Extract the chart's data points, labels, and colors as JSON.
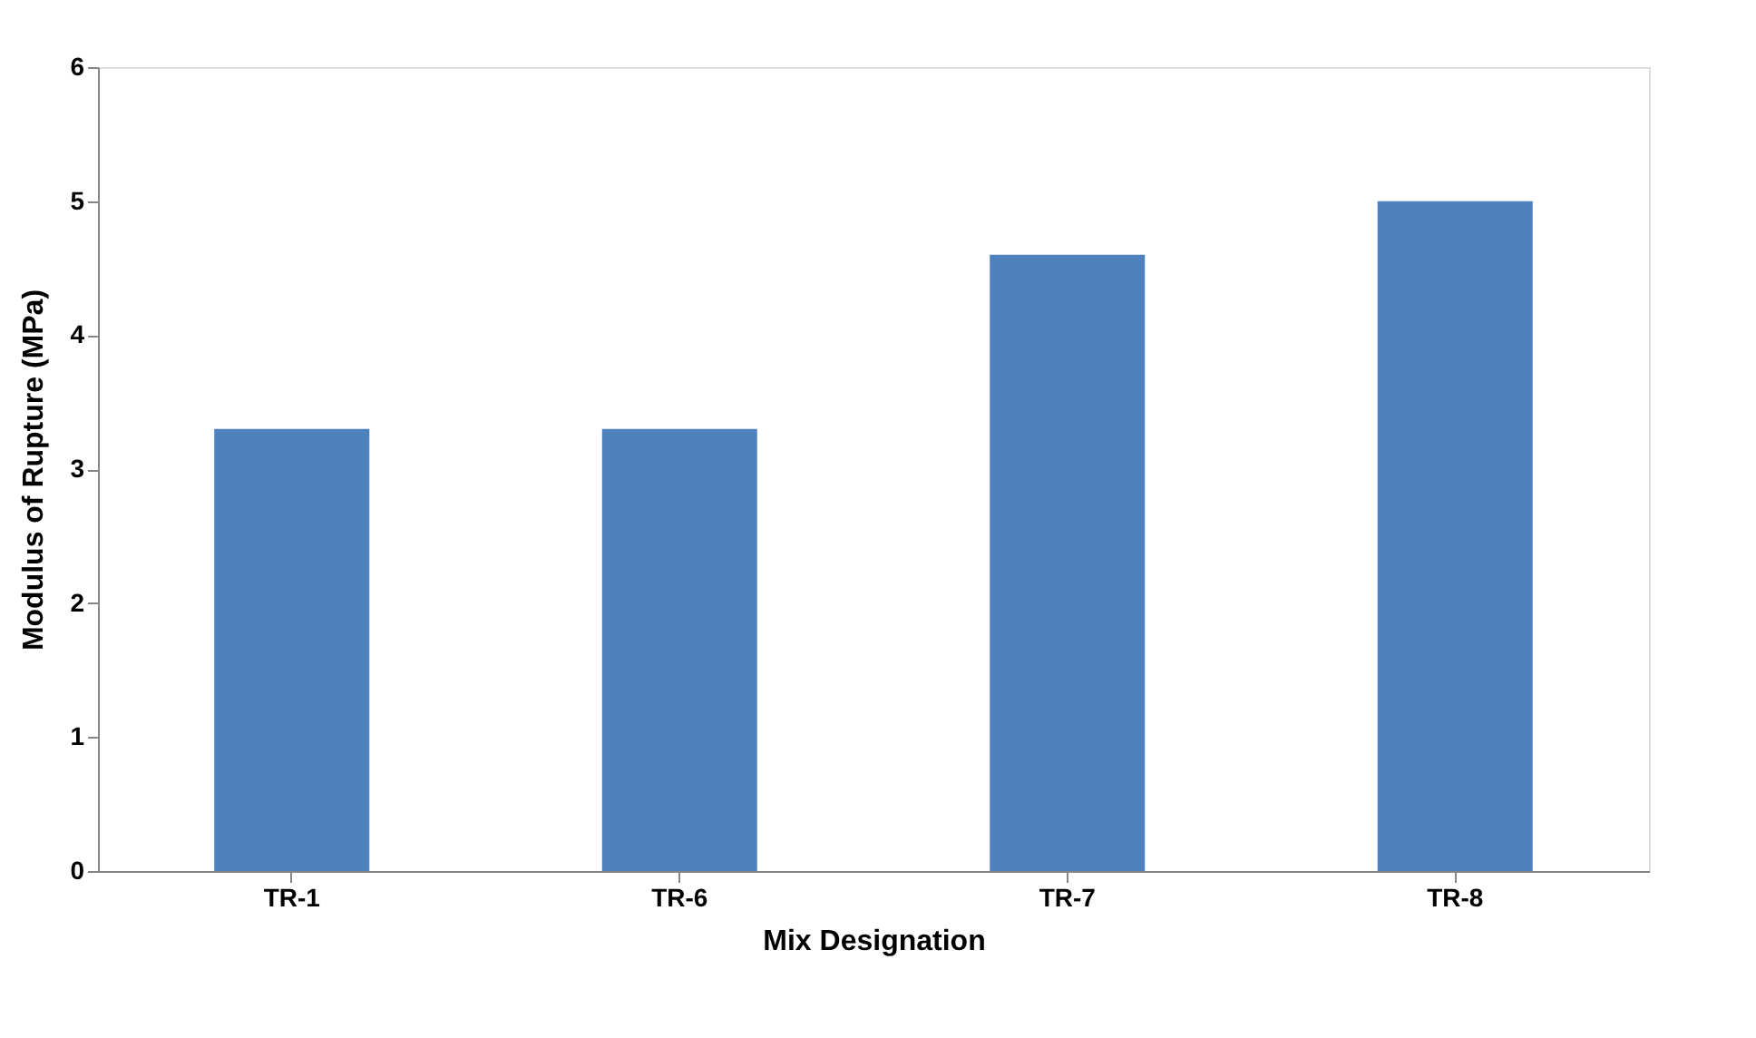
{
  "chart_data": {
    "type": "bar",
    "xlabel": "Mix Designation",
    "ylabel": "Modulus of Rupture (MPa)",
    "categories": [
      "TR-1",
      "TR-6",
      "TR-7",
      "TR-8"
    ],
    "values": [
      3.3,
      3.3,
      4.6,
      5.0
    ],
    "color": "#4f81bd",
    "ylim": [
      0,
      6
    ],
    "yticks": [
      0,
      1,
      2,
      3,
      4,
      5,
      6
    ],
    "grid": false
  }
}
